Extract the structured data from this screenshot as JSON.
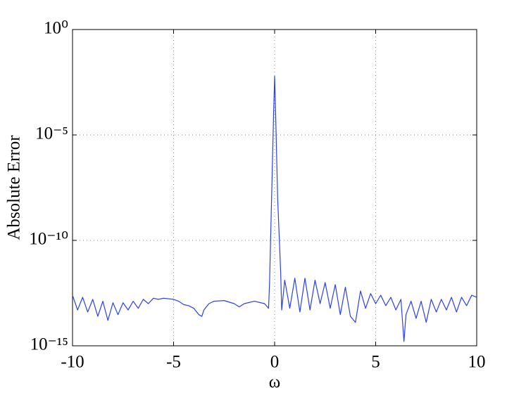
{
  "chart_data": {
    "type": "line",
    "xlabel": "ω",
    "ylabel": "Absolute Error",
    "color": "#2b3ff2",
    "yscale": "log",
    "grid": true,
    "xlim": [
      -10,
      10
    ],
    "xticks": [
      -10,
      -5,
      0,
      5,
      10
    ],
    "ylim": [
      1e-15,
      1
    ],
    "yticks": [
      {
        "value": 1e-15,
        "label": "10⁻¹⁵"
      },
      {
        "value": 1e-10,
        "label": "10⁻¹⁰"
      },
      {
        "value": 1e-05,
        "label": "10⁻⁵"
      },
      {
        "value": 1,
        "label": "10⁰"
      }
    ],
    "x": [
      -10,
      -9.75,
      -9.5,
      -9.25,
      -9,
      -8.75,
      -8.5,
      -8.25,
      -8,
      -7.75,
      -7.5,
      -7.25,
      -7,
      -6.75,
      -6.5,
      -6.25,
      -6,
      -5.75,
      -5.5,
      -5,
      -4.75,
      -4.5,
      -4.25,
      -4,
      -3.75,
      -3.6,
      -3.5,
      -3.25,
      -3,
      -2.5,
      -2,
      -1.75,
      -1.5,
      -1,
      -0.5,
      -0.3,
      -0.25,
      -0.15,
      -0.05,
      0,
      0.05,
      0.15,
      0.3,
      0.35,
      0.5,
      0.75,
      1,
      1.25,
      1.5,
      1.75,
      2,
      2.25,
      2.5,
      2.75,
      3,
      3.25,
      3.5,
      3.75,
      4,
      4.25,
      4.5,
      4.75,
      5,
      5.25,
      5.5,
      5.75,
      6,
      6.25,
      6.4,
      6.5,
      6.75,
      7,
      7.25,
      7.5,
      7.75,
      8,
      8.25,
      8.5,
      8.75,
      9,
      9.25,
      9.5,
      9.75,
      10
    ],
    "values": [
      2.5e-13,
      5e-14,
      2e-13,
      4e-14,
      1.6e-13,
      2.5e-14,
      1.3e-13,
      1.6e-14,
      1.1e-13,
      3e-14,
      1.1e-13,
      5e-14,
      1.3e-13,
      6e-14,
      1.6e-13,
      1e-13,
      1.8e-13,
      1.6e-13,
      1.8e-13,
      1.6e-13,
      1.3e-13,
      9e-14,
      8e-14,
      6e-14,
      3e-14,
      2.5e-14,
      5e-14,
      1e-13,
      1.3e-13,
      1.4e-13,
      1e-13,
      7e-14,
      1e-13,
      1.3e-13,
      1e-13,
      6e-14,
      1e-12,
      1e-08,
      0.0001,
      0.006,
      0.0001,
      1e-08,
      3e-12,
      5e-14,
      1.3e-12,
      6e-14,
      1.6e-12,
      4e-14,
      1.6e-12,
      5e-14,
      1.3e-12,
      1e-13,
      1e-12,
      6e-14,
      8e-13,
      3e-14,
      6e-13,
      2.5e-14,
      1.3e-14,
      4e-13,
      6e-14,
      3e-13,
      1e-13,
      2.5e-13,
      8e-14,
      2e-13,
      5e-14,
      1.6e-13,
      1.6e-15,
      3e-14,
      1.3e-13,
      2e-14,
      1.3e-13,
      1.3e-14,
      1.6e-13,
      4e-14,
      1.6e-13,
      5e-14,
      2e-13,
      4e-14,
      2e-13,
      8e-14,
      2.5e-13,
      2e-13
    ]
  }
}
